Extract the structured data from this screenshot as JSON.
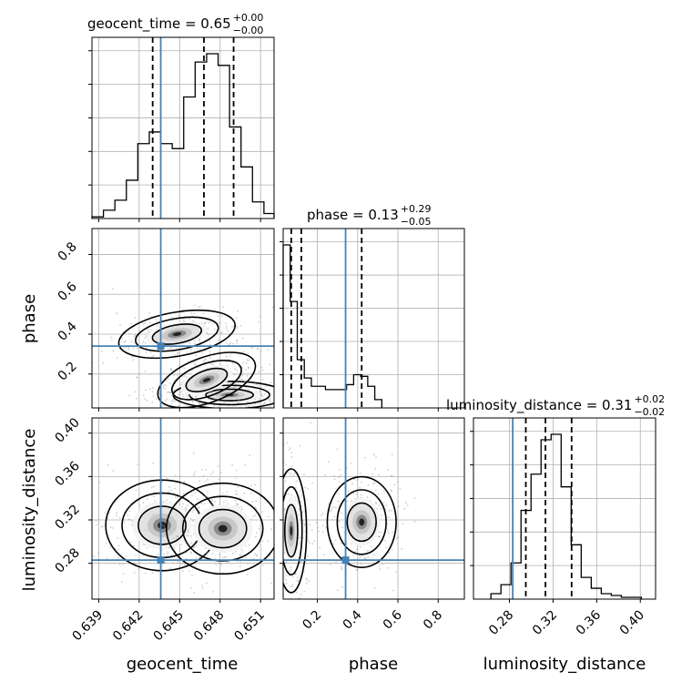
{
  "chart_data": {
    "type": "corner",
    "parameters": [
      {
        "name": "geocent_time",
        "label": "geocent_time",
        "range": [
          0.6385,
          0.652
        ],
        "ticks": [
          "0.639",
          "0.642",
          "0.645",
          "0.648",
          "0.651"
        ],
        "tick_values": [
          0.639,
          0.642,
          0.645,
          0.648,
          0.651
        ],
        "injection": 0.6436,
        "quantiles": [
          0.643,
          0.6468,
          0.649
        ],
        "title": {
          "main": "geocent_time = 0.65",
          "sup": "+0.00",
          "sub": "−0.00"
        },
        "hist_x": [
          0.6385,
          0.63935,
          0.6402,
          0.64105,
          0.6419,
          0.64275,
          0.6436,
          0.64445,
          0.6453,
          0.64615,
          0.647,
          0.64785,
          0.6487,
          0.64955,
          0.6504,
          0.65125,
          0.652
        ],
        "hist_counts": [
          1,
          5,
          11,
          23,
          45,
          52,
          45,
          42,
          73,
          94,
          99,
          92,
          55,
          31,
          10,
          3
        ]
      },
      {
        "name": "phase",
        "label": "phase",
        "range": [
          0.03,
          0.93
        ],
        "ticks": [
          "0.2",
          "0.4",
          "0.6",
          "0.8"
        ],
        "tick_values": [
          0.2,
          0.4,
          0.6,
          0.8
        ],
        "injection": 0.34,
        "quantiles": [
          0.07,
          0.12,
          0.42
        ],
        "title": {
          "main": "phase = 0.13",
          "sup": "+0.29",
          "sub": "−0.05"
        },
        "hist_x": [
          0.03,
          0.065,
          0.1,
          0.135,
          0.17,
          0.205,
          0.24,
          0.275,
          0.31,
          0.345,
          0.38,
          0.415,
          0.45,
          0.485,
          0.52
        ],
        "hist_counts": [
          98,
          64,
          29,
          18,
          13,
          13,
          11,
          11,
          11,
          14,
          20,
          19,
          13,
          5
        ]
      },
      {
        "name": "luminosity_distance",
        "label": "luminosity_distance",
        "range": [
          0.247,
          0.414
        ],
        "ticks": [
          "0.28",
          "0.32",
          "0.36",
          "0.40"
        ],
        "tick_values": [
          0.28,
          0.32,
          0.36,
          0.4
        ],
        "injection": 0.283,
        "quantiles": [
          0.295,
          0.313,
          0.337
        ],
        "title": {
          "main": "luminosity_distance = 0.31",
          "sup": "+0.02",
          "sub": "−0.02"
        },
        "hist_x": [
          0.263,
          0.2722,
          0.2814,
          0.2906,
          0.2998,
          0.309,
          0.3182,
          0.3274,
          0.3366,
          0.3458,
          0.355,
          0.3642,
          0.3734,
          0.3826,
          0.3918,
          0.401
        ],
        "hist_counts": [
          3,
          8,
          20,
          49,
          69,
          88,
          91,
          62,
          30,
          12,
          6,
          3,
          2,
          1,
          1
        ]
      }
    ],
    "contour_2d": [
      {
        "x_param": "geocent_time",
        "y_param": "phase",
        "modes": [
          {
            "cx": 0.6448,
            "cy": 0.4,
            "rx": 0.0023,
            "ry": 0.058,
            "rot": -10
          },
          {
            "cx": 0.6487,
            "cy": 0.095,
            "rx": 0.0022,
            "ry": 0.036,
            "rot": 0
          },
          {
            "cx": 0.647,
            "cy": 0.17,
            "rx": 0.002,
            "ry": 0.06,
            "rot": -20
          }
        ]
      },
      {
        "x_param": "geocent_time",
        "y_param": "luminosity_distance",
        "modes": [
          {
            "cx": 0.6437,
            "cy": 0.315,
            "rx": 0.0022,
            "ry": 0.022,
            "rot": 0
          },
          {
            "cx": 0.6482,
            "cy": 0.312,
            "rx": 0.0022,
            "ry": 0.022,
            "rot": 0
          }
        ]
      },
      {
        "x_param": "phase",
        "y_param": "luminosity_distance",
        "modes": [
          {
            "cx": 0.07,
            "cy": 0.31,
            "rx": 0.04,
            "ry": 0.03,
            "rot": 0
          },
          {
            "cx": 0.42,
            "cy": 0.318,
            "rx": 0.09,
            "ry": 0.022,
            "rot": 0
          }
        ]
      }
    ],
    "colors": {
      "injection": "#4682b4",
      "hist": "#000000",
      "quantile": "#000000",
      "grid": "#b0b0b0",
      "scatter": "#a0a0a0"
    },
    "grid": true
  }
}
